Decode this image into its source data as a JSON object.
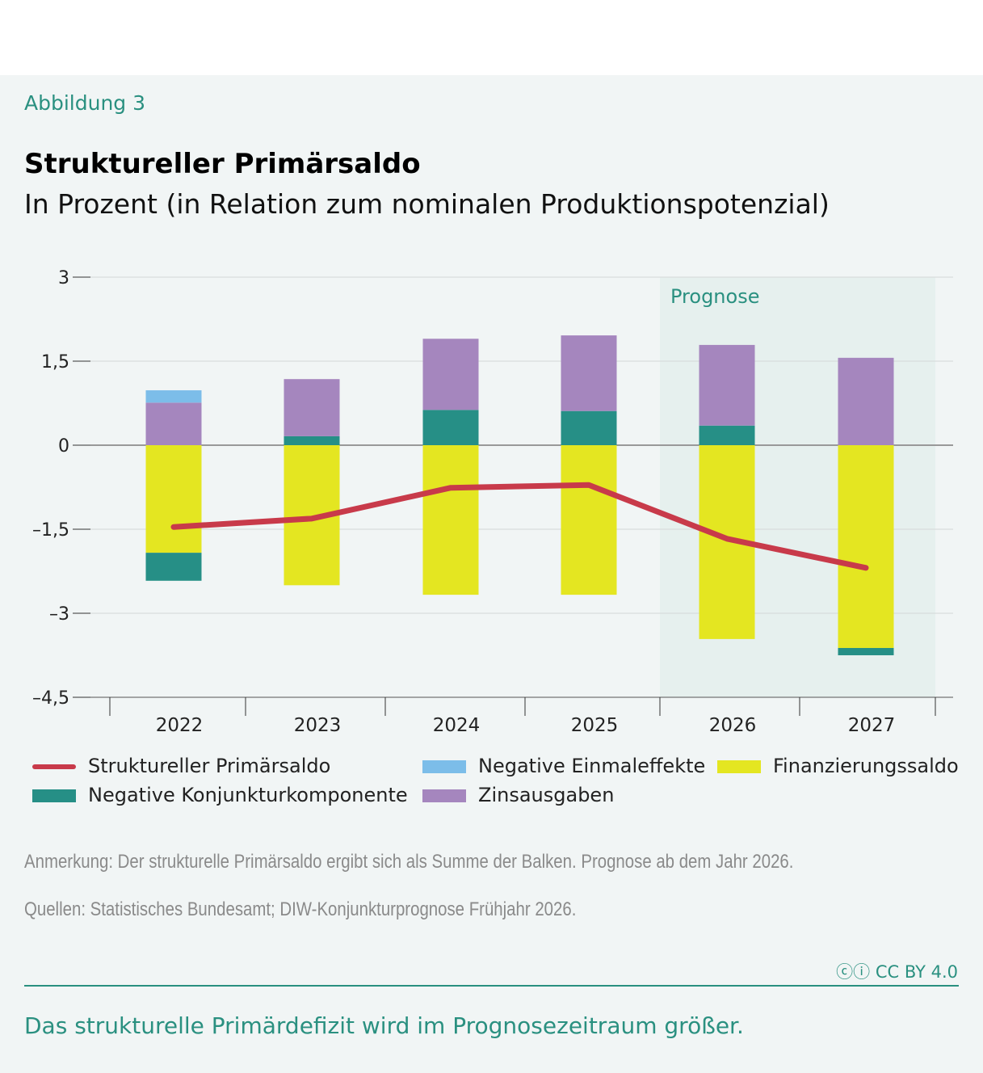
{
  "figure_label": "Abbildung 3",
  "title": "Struktureller Primärsaldo",
  "subtitle": "In Prozent (in Relation zum nominalen Produktionspotenzial)",
  "note": "Anmerkung: Der strukturelle Primärsaldo ergibt sich als Summe der Balken. Prognose ab dem Jahr 2026.",
  "sources": "Quellen: Statistisches Bundesamt; DIW-Konjunkturprognose Frühjahr 2026.",
  "license": "CC BY 4.0",
  "takeaway": "Das strukturelle Primärdefizit wird im Prognosezeitraum größer.",
  "chart_data": {
    "type": "bar",
    "stacked": true,
    "categories": [
      "2022",
      "2023",
      "2024",
      "2025",
      "2026",
      "2027"
    ],
    "ylim": [
      -4.5,
      3
    ],
    "yticks": [
      3,
      1.5,
      0,
      -1.5,
      -3,
      -4.5
    ],
    "ytick_labels": [
      "3",
      "1,5",
      "0",
      "–1,5",
      "–3",
      "–4,5"
    ],
    "grid": true,
    "shaded_region": {
      "label": "Prognose",
      "from": "2026",
      "to": "2027"
    },
    "series": [
      {
        "name": "Finanzierungssaldo",
        "color": "#e4e621",
        "values": [
          -1.92,
          -2.5,
          -2.67,
          -2.67,
          -3.46,
          -3.62
        ]
      },
      {
        "name": "Negative Konjunkturkomponente",
        "color": "#268f86",
        "values": [
          -0.5,
          0.16,
          0.63,
          0.61,
          0.35,
          -0.13
        ]
      },
      {
        "name": "Zinsausgaben",
        "color": "#a586be",
        "values": [
          0.76,
          1.02,
          1.27,
          1.35,
          1.44,
          1.56
        ]
      },
      {
        "name": "Negative Einmaleffekte",
        "color": "#7cbde9",
        "values": [
          0.22,
          0,
          0,
          0,
          0,
          0
        ]
      }
    ],
    "line": {
      "name": "Struktureller Primärsaldo",
      "color": "#c83a4a",
      "values": [
        -1.46,
        -1.31,
        -0.76,
        -0.71,
        -1.67,
        -2.19
      ]
    },
    "legend_placement": "bottom"
  }
}
